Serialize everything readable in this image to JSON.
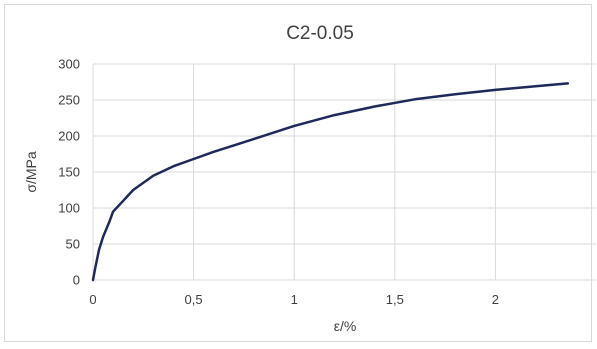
{
  "chart_data": {
    "type": "line",
    "title": "C2-0.05",
    "xlabel": "ε/%",
    "ylabel": "σ/MPa",
    "xlim": [
      0,
      2.5
    ],
    "ylim": [
      0,
      300
    ],
    "x_ticks": [
      0,
      0.5,
      1,
      1.5,
      2
    ],
    "x_tick_labels": [
      "0",
      "0,5",
      "1",
      "1,5",
      "2"
    ],
    "y_ticks": [
      0,
      50,
      100,
      150,
      200,
      250,
      300
    ],
    "y_tick_labels": [
      "0",
      "50",
      "100",
      "150",
      "200",
      "250",
      "300"
    ],
    "grid": true,
    "line_color": "#1f2a5a",
    "series": [
      {
        "x": [
          0,
          0.01,
          0.03,
          0.05,
          0.08,
          0.1,
          0.15,
          0.2,
          0.3,
          0.4,
          0.5,
          0.6,
          0.7,
          0.8,
          0.9,
          1.0,
          1.2,
          1.4,
          1.6,
          1.8,
          2.0,
          2.2,
          2.36
        ],
        "values": [
          0,
          15,
          42,
          60,
          80,
          95,
          110,
          125,
          145,
          158,
          168,
          178,
          187,
          196,
          205,
          214,
          229,
          241,
          251,
          258,
          264,
          269,
          273
        ]
      }
    ]
  }
}
